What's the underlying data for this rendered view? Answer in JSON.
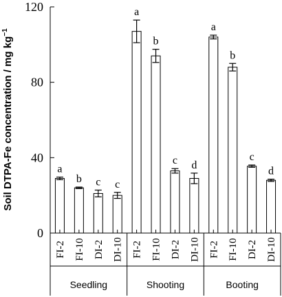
{
  "chart_data": {
    "type": "bar",
    "ylabel": "Soil DTPA-Fe concentration / mg kg",
    "ylabel_sup": "−1",
    "ylim": [
      0,
      120
    ],
    "yticks": [
      0,
      40,
      80,
      120
    ],
    "series_labels": [
      "FI-2",
      "FI-10",
      "DI-2",
      "DI-10"
    ],
    "groups": [
      {
        "name": "Seedling",
        "bars": [
          {
            "label": "FI-2",
            "value": 29,
            "error": 0.7,
            "letter": "a"
          },
          {
            "label": "FI-10",
            "value": 24,
            "error": 0.4,
            "letter": "b"
          },
          {
            "label": "DI-2",
            "value": 21,
            "error": 1.8,
            "letter": "c"
          },
          {
            "label": "DI-10",
            "value": 20,
            "error": 1.6,
            "letter": "c"
          }
        ]
      },
      {
        "name": "Shooting",
        "bars": [
          {
            "label": "FI-2",
            "value": 107,
            "error": 6.0,
            "letter": "a"
          },
          {
            "label": "FI-10",
            "value": 94,
            "error": 3.5,
            "letter": "b"
          },
          {
            "label": "DI-2",
            "value": 33,
            "error": 1.2,
            "letter": "c"
          },
          {
            "label": "DI-10",
            "value": 29,
            "error": 2.8,
            "letter": "d"
          }
        ]
      },
      {
        "name": "Booting",
        "bars": [
          {
            "label": "FI-2",
            "value": 104,
            "error": 1.0,
            "letter": "a"
          },
          {
            "label": "FI-10",
            "value": 88,
            "error": 2.0,
            "letter": "b"
          },
          {
            "label": "DI-2",
            "value": 35.5,
            "error": 0.6,
            "letter": "c"
          },
          {
            "label": "DI-10",
            "value": 28,
            "error": 0.6,
            "letter": "d"
          }
        ]
      }
    ],
    "bar_fill": "#ffffff",
    "bar_stroke": "#000000",
    "grid": false,
    "legend": "none"
  }
}
